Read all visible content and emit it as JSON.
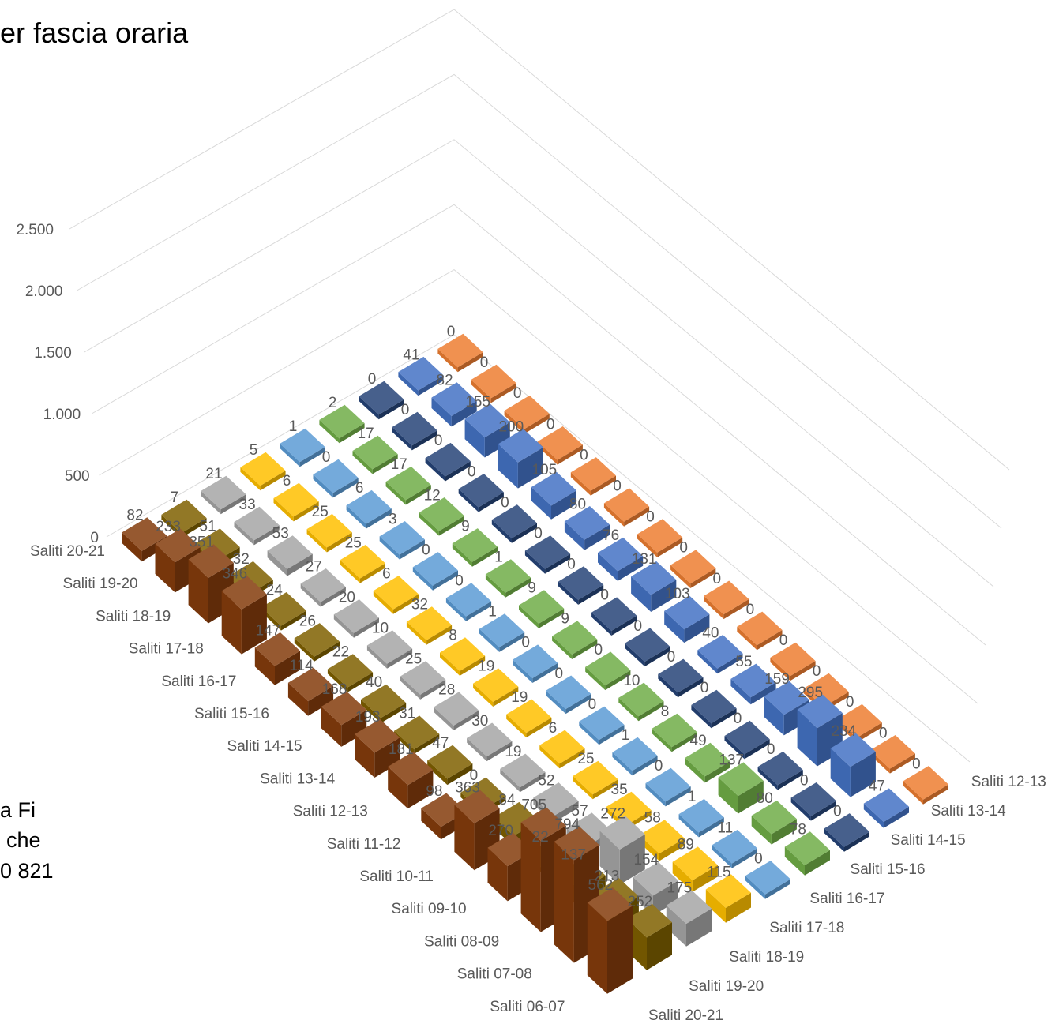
{
  "chart_data": {
    "type": "bar3d",
    "title": "er fascia oraria",
    "categories": [
      "Saliti 20-21",
      "Saliti 19-20",
      "Saliti 18-19",
      "Saliti 17-18",
      "Saliti 16-17",
      "Saliti 15-16",
      "Saliti 14-15",
      "Saliti 13-14",
      "Saliti 12-13",
      "Saliti 11-12",
      "Saliti 10-11",
      "Saliti 09-10",
      "Saliti 08-09",
      "Saliti 07-08",
      "Saliti 06-07"
    ],
    "series": [
      {
        "name": "Saliti 12-13",
        "color": "#ed7d31",
        "values": [
          0,
          0,
          0,
          0,
          0,
          0,
          0,
          0,
          0,
          0,
          0,
          0,
          0,
          0,
          0
        ]
      },
      {
        "name": "Saliti 13-14",
        "color": "#4472c4",
        "values": [
          41,
          82,
          155,
          200,
          105,
          80,
          76,
          131,
          103,
          40,
          55,
          159,
          295,
          234,
          47
        ]
      },
      {
        "name": "Saliti 14-15",
        "color": "#264478",
        "values": [
          0,
          0,
          0,
          0,
          0,
          0,
          0,
          0,
          0,
          0,
          0,
          0,
          0,
          0,
          0
        ]
      },
      {
        "name": "Saliti 15-16",
        "color": "#70ad47",
        "values": [
          2,
          17,
          17,
          12,
          9,
          1,
          9,
          9,
          0,
          10,
          8,
          49,
          137,
          80,
          78
        ]
      },
      {
        "name": "Saliti 16-17",
        "color": "#5b9bd5",
        "values": [
          1,
          0,
          6,
          3,
          0,
          0,
          1,
          0,
          0,
          0,
          1,
          0,
          1,
          11,
          0
        ]
      },
      {
        "name": "Saliti 17-18",
        "color": "#ffc000",
        "values": [
          5,
          6,
          25,
          25,
          6,
          32,
          8,
          19,
          19,
          6,
          25,
          35,
          58,
          89,
          115
        ]
      },
      {
        "name": "Saliti 18-19",
        "color": "#a5a5a5",
        "values": [
          21,
          33,
          53,
          27,
          20,
          10,
          25,
          28,
          30,
          19,
          52,
          57,
          272,
          154,
          175
        ]
      },
      {
        "name": "Saliti 19-20",
        "color": "#7f6000",
        "values": [
          7,
          51,
          32,
          24,
          26,
          22,
          40,
          31,
          47,
          0,
          84,
          22,
          137,
          213,
          252
        ]
      },
      {
        "name": "Saliti 20-21",
        "color": "#843c0c",
        "values": [
          82,
          233,
          351,
          346,
          147,
          114,
          168,
          193,
          181,
          98,
          363,
          270,
          705,
          794,
          562
        ]
      }
    ],
    "ylim": [
      0,
      2500
    ],
    "yticks": [
      0,
      500,
      {
        "value": 1000,
        "label": "1.000"
      },
      {
        "value": 1500,
        "label": "1.500"
      },
      {
        "value": 2000,
        "label": "2.000"
      },
      {
        "value": 2500,
        "label": "2.500"
      }
    ],
    "grid": true
  },
  "text_fragments": [
    "a Fi",
    "che",
    "0 821"
  ]
}
